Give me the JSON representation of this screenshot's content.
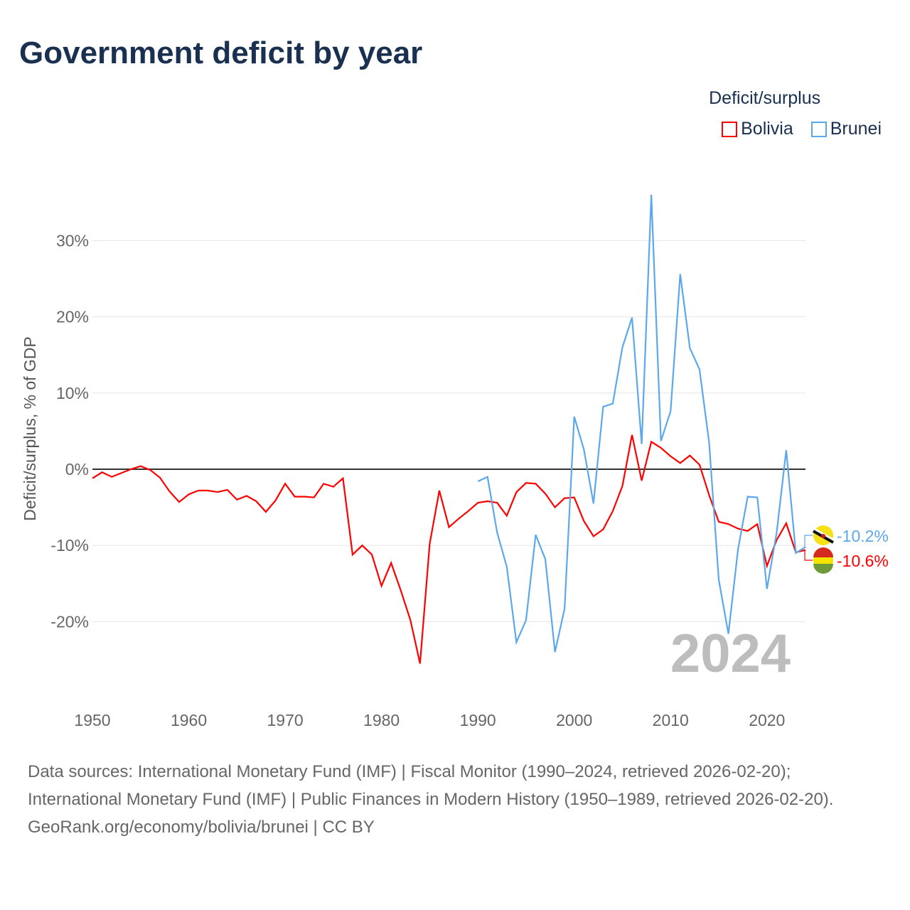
{
  "chart_data": {
    "type": "line",
    "title": "Government deficit by year",
    "ylabel": "Deficit/surplus, % of GDP",
    "xlabel": "",
    "legend_title": "Deficit/surplus",
    "legend_position": "top-right",
    "year_watermark": "2024",
    "ylim": [
      -28,
      37
    ],
    "xlim": [
      1950,
      2024
    ],
    "yticks": [
      -20,
      -10,
      0,
      10,
      20,
      30
    ],
    "ytick_labels": [
      "-20%",
      "-10%",
      "0%",
      "10%",
      "20%",
      "30%"
    ],
    "xticks": [
      1950,
      1960,
      1970,
      1980,
      1990,
      2000,
      2010,
      2020
    ],
    "xtick_labels": [
      "1950",
      "1960",
      "1970",
      "1980",
      "1990",
      "2000",
      "2010",
      "2020"
    ],
    "series": [
      {
        "name": "Bolivia",
        "color": "#ff0000",
        "end_label": "-10.6%",
        "start": 1950,
        "values": [
          -1.2,
          -0.4,
          -1.0,
          -0.5,
          0,
          0.4,
          -0.1,
          -1.1,
          -2.9,
          -4.3,
          -3.3,
          -2.8,
          -2.8,
          -3.0,
          -2.7,
          -4.0,
          -3.5,
          -4.2,
          -5.6,
          -4.1,
          -1.9,
          -3.6,
          -3.6,
          -3.7,
          -1.9,
          -2.3,
          -1.2,
          -11.2,
          -10.0,
          -11.2,
          -15.3,
          -12.3,
          -15.9,
          -19.8,
          -25.5,
          -9.8,
          -2.8,
          -7.6,
          -6.5,
          -5.5,
          -4.4,
          -4.2,
          -4.4,
          -6.1,
          -3.0,
          -1.8,
          -1.9,
          -3.2,
          -5.0,
          -3.8,
          -3.7,
          -6.8,
          -8.8,
          -7.9,
          -5.5,
          -2.2,
          4.5,
          -1.5,
          3.6,
          2.8,
          1.7,
          0.8,
          1.8,
          0.6,
          -3.4,
          -6.9,
          -7.2,
          -7.8,
          -8.1,
          -7.2,
          -12.7,
          -9.3,
          -7.1,
          -10.9,
          -10.6
        ]
      },
      {
        "name": "Brunei",
        "color": "#5ba8ec",
        "end_label": "-10.2%",
        "start": 1990,
        "values": [
          -1.6,
          -1.0,
          -8.3,
          -12.8,
          -22.7,
          -19.8,
          -8.6,
          -11.8,
          -24.0,
          -18.3,
          6.9,
          2.6,
          -4.5,
          8.2,
          8.6,
          16.0,
          19.9,
          3.3,
          36.0,
          3.7,
          7.6,
          25.6,
          15.9,
          13.1,
          3.5,
          -14.5,
          -21.6,
          -10.5,
          -3.6,
          -3.7,
          -15.7,
          -8.4,
          2.5,
          -11.0,
          -10.2
        ]
      }
    ]
  },
  "footer": {
    "sources": "Data sources: International Monetary Fund (IMF) | Fiscal Monitor (1990–2024, retrieved 2026-02-20); International Monetary Fund (IMF) | Public Finances in Modern History (1950–1989, retrieved 2026-02-20).",
    "credit": "GeoRank.org/economy/bolivia/brunei | CC BY"
  }
}
